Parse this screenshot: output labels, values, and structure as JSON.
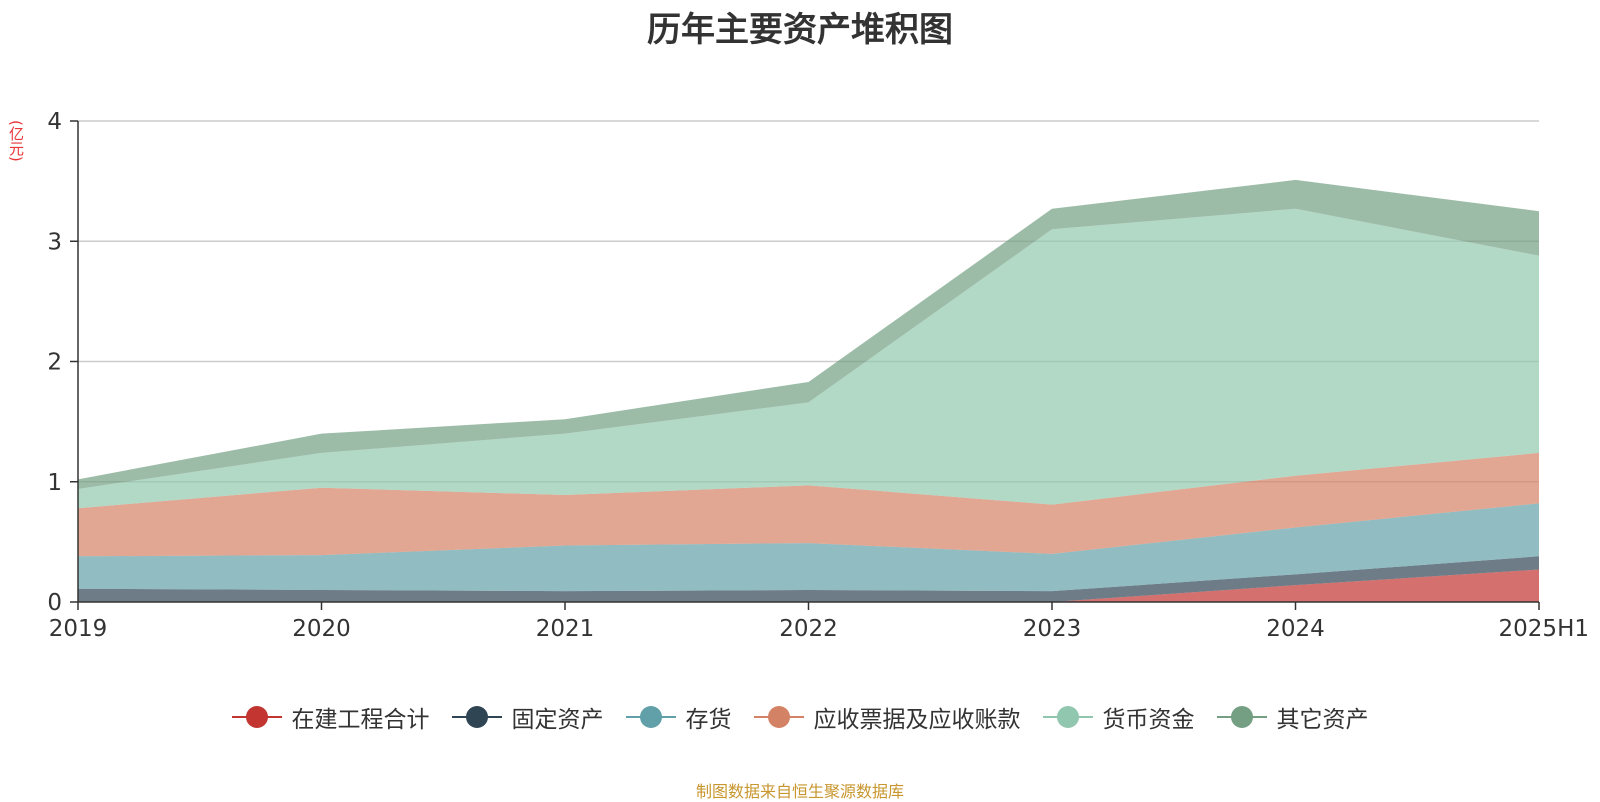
{
  "chart_data": {
    "type": "area",
    "stacked": true,
    "title": "历年主要资产堆积图",
    "ylabel": "(亿元)",
    "categories": [
      "2019",
      "2020",
      "2021",
      "2022",
      "2023",
      "2024",
      "2025H1"
    ],
    "ylim": [
      0,
      4
    ],
    "yticks": [
      0,
      1,
      2,
      3,
      4
    ],
    "grid": true,
    "legend_position": "bottom",
    "series": [
      {
        "name": "在建工程合计",
        "color": "#c23531",
        "values": [
          0,
          0,
          0,
          0,
          0,
          0.14,
          0.27
        ]
      },
      {
        "name": "固定资产",
        "color": "#2f4554",
        "values": [
          0.11,
          0.1,
          0.09,
          0.1,
          0.09,
          0.09,
          0.11
        ]
      },
      {
        "name": "存货",
        "color": "#61a0a8",
        "values": [
          0.27,
          0.29,
          0.38,
          0.39,
          0.31,
          0.39,
          0.44
        ]
      },
      {
        "name": "应收票据及应收账款",
        "color": "#d48265",
        "values": [
          0.4,
          0.56,
          0.42,
          0.48,
          0.41,
          0.43,
          0.42
        ]
      },
      {
        "name": "货币资金",
        "color": "#91c7ae",
        "values": [
          0.16,
          0.29,
          0.51,
          0.69,
          2.29,
          2.22,
          1.64
        ]
      },
      {
        "name": "其它资产",
        "color": "#749f83",
        "values": [
          0.08,
          0.16,
          0.12,
          0.17,
          0.17,
          0.24,
          0.37
        ]
      }
    ]
  },
  "source": "制图数据来自恒生聚源数据库"
}
